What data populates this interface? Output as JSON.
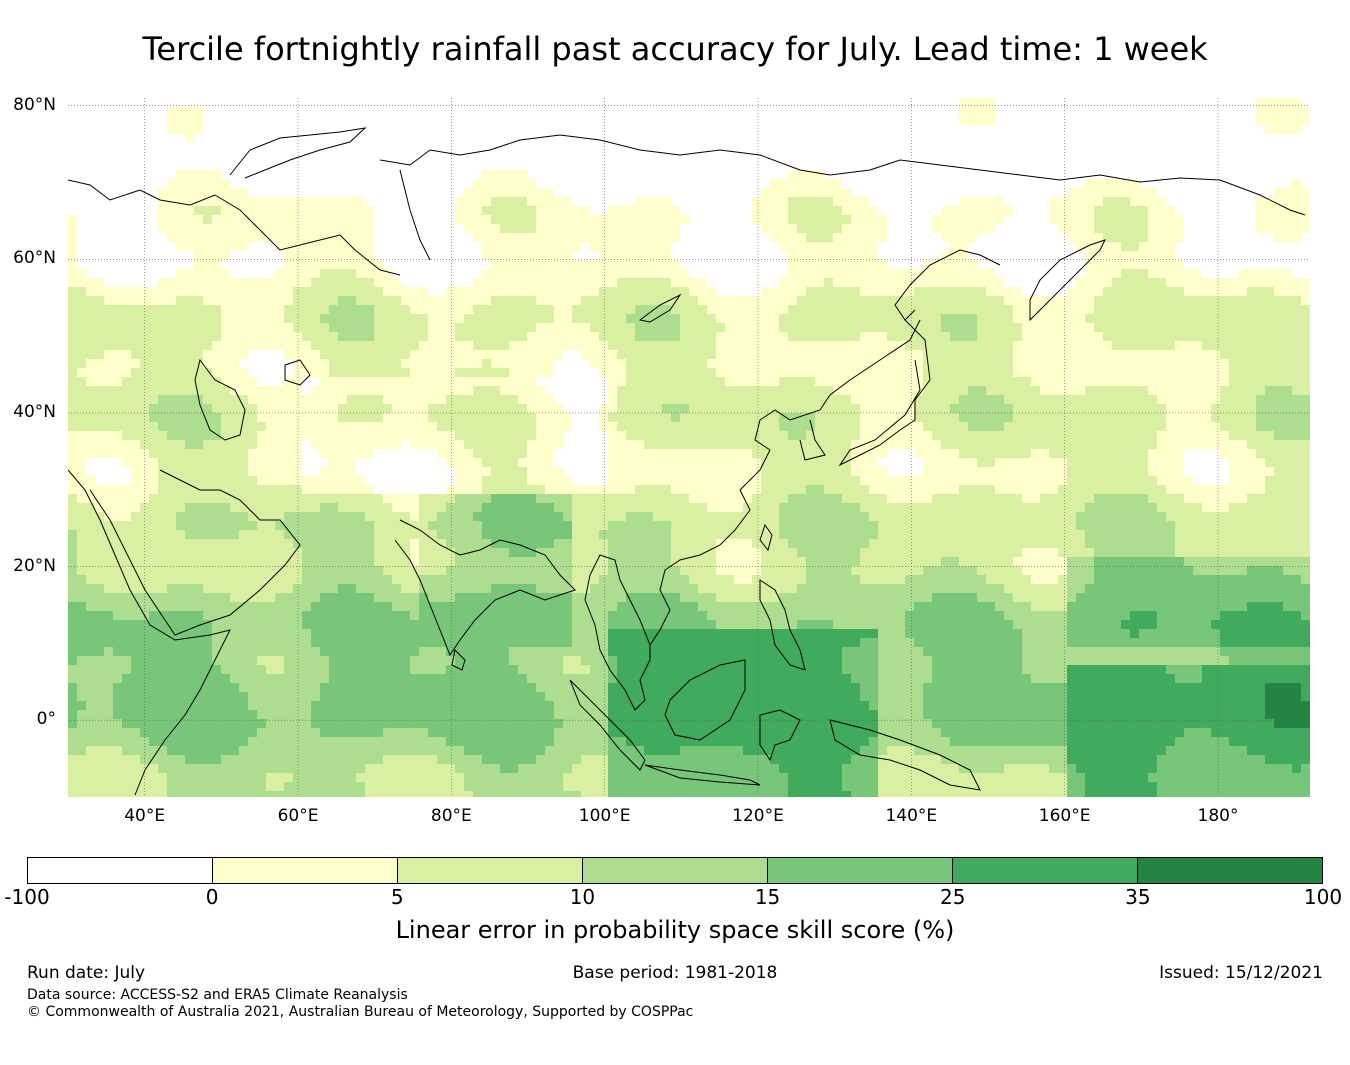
{
  "title": "Tercile fortnightly rainfall past accuracy for July. Lead time: 1 week",
  "map": {
    "lat_labels": [
      {
        "text": "80°N",
        "lat": 80
      },
      {
        "text": "60°N",
        "lat": 60
      },
      {
        "text": "40°N",
        "lat": 40
      },
      {
        "text": "20°N",
        "lat": 20
      },
      {
        "text": "0°",
        "lat": 0
      }
    ],
    "lon_labels": [
      {
        "text": "40°E",
        "lon": 40
      },
      {
        "text": "60°E",
        "lon": 60
      },
      {
        "text": "80°E",
        "lon": 80
      },
      {
        "text": "100°E",
        "lon": 100
      },
      {
        "text": "120°E",
        "lon": 120
      },
      {
        "text": "140°E",
        "lon": 140
      },
      {
        "text": "160°E",
        "lon": 160
      },
      {
        "text": "180°",
        "lon": 180
      }
    ],
    "extent": {
      "lon_min": 30,
      "lon_max": 192,
      "lat_min": -10,
      "lat_max": 81
    }
  },
  "colorbar": {
    "label": "Linear error in probability space skill score (%)",
    "ticks": [
      "-100",
      "0",
      "5",
      "10",
      "15",
      "25",
      "35",
      "100"
    ],
    "colors": [
      "#ffffff",
      "#ffffcc",
      "#d9f0a3",
      "#addd8e",
      "#78c679",
      "#41ab5d",
      "#238443"
    ]
  },
  "footer": {
    "run_date": "Run date: July",
    "base_period": "Base period: 1981-2018",
    "issued": "Issued: 15/12/2021",
    "data_source": "Data source: ACCESS-S2 and ERA5 Climate Reanalysis",
    "copyright": "© Commonwealth of Australia 2021, Australian Bureau of Meteorology, Supported by COSPPac"
  }
}
